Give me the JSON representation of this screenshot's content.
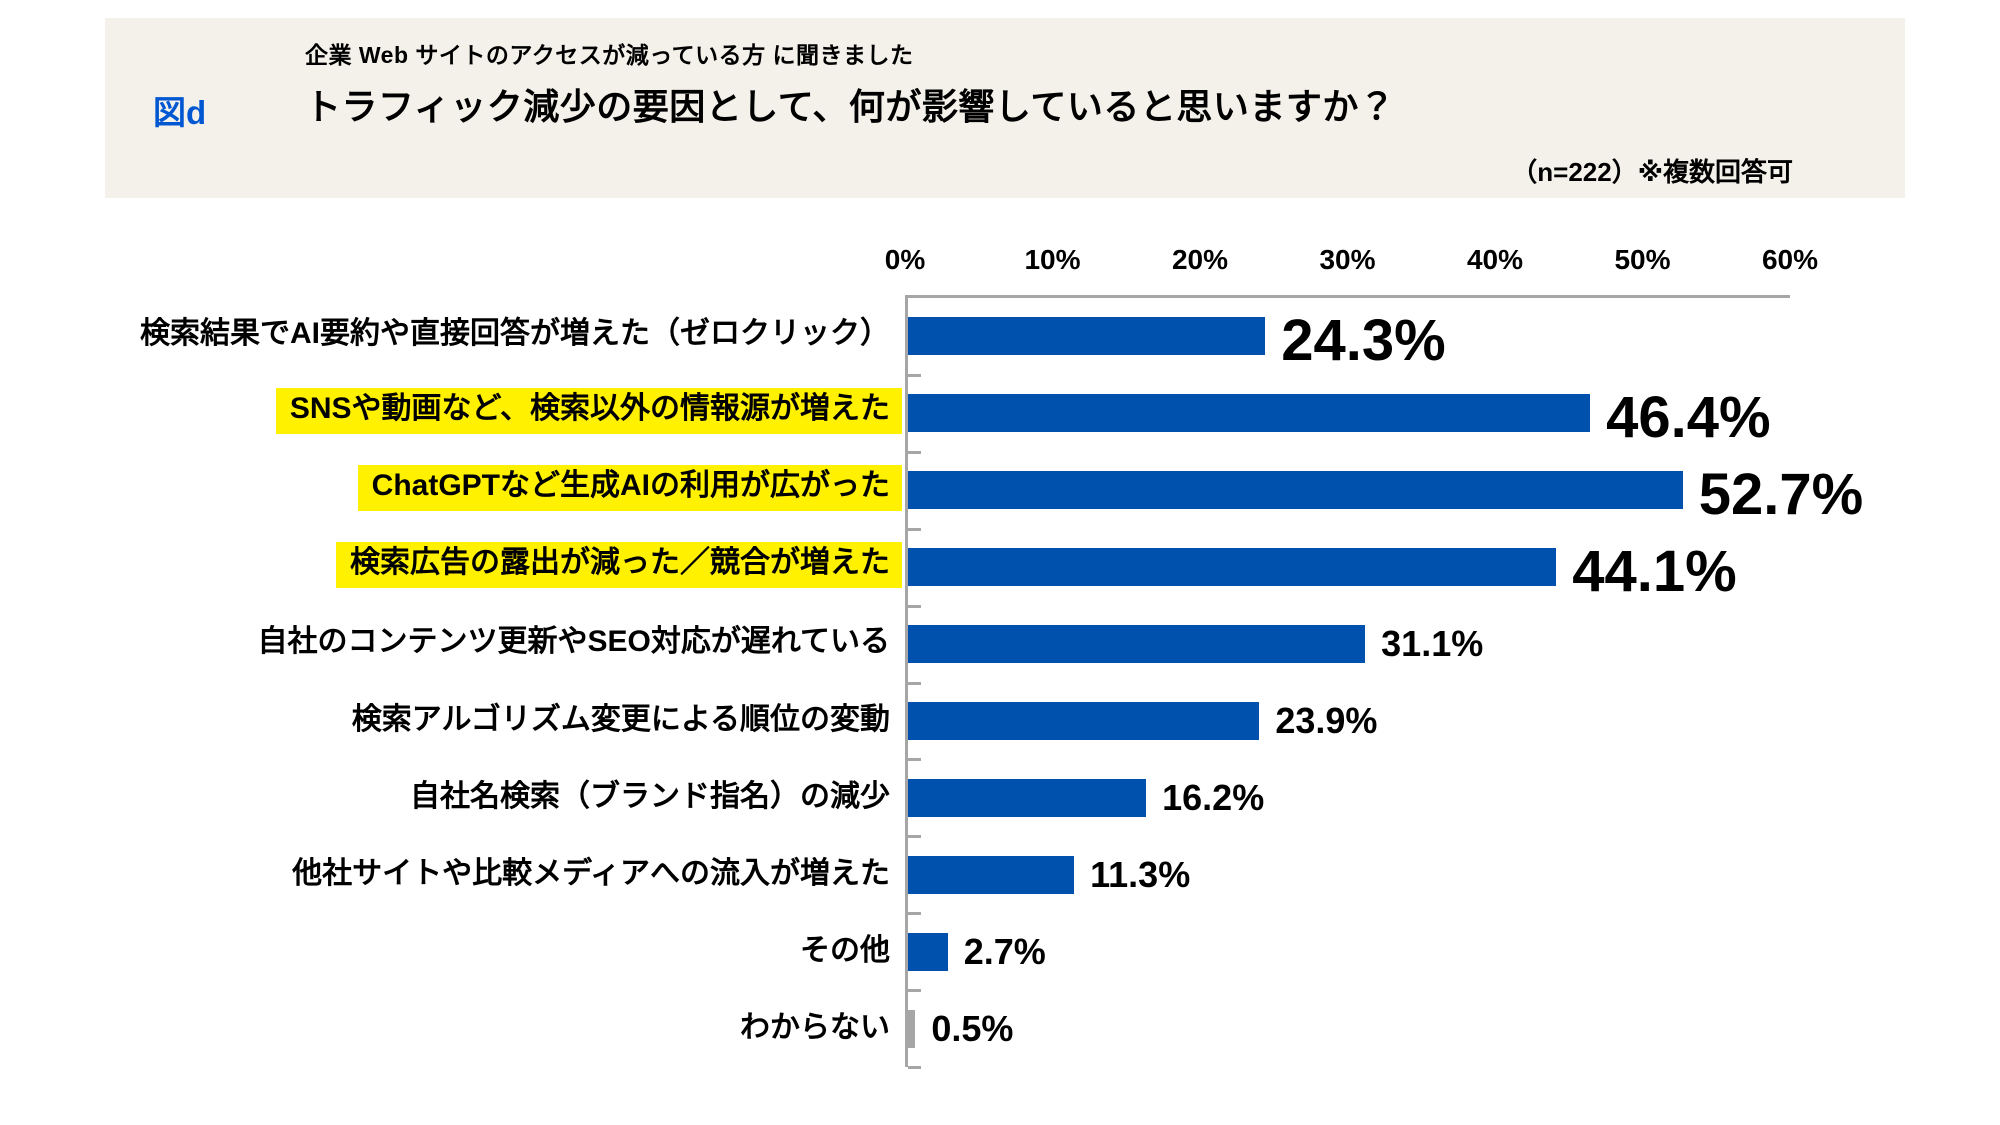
{
  "header": {
    "figure_label": "図d",
    "subtitle": "企業 Web サイトのアクセスが減っている方 に聞きました",
    "title": "トラフィック減少の要因として、何が影響していると思いますか？",
    "note": "（n=222）※複数回答可"
  },
  "colors": {
    "band_background": "#F4F1EA",
    "bar_blue": "#0050AE",
    "bar_gray": "#A6A6A6",
    "axis_gray": "#A6A6A6",
    "highlight_yellow": "#FFF100",
    "figure_label_blue": "#0057D2"
  },
  "chart_data": {
    "type": "bar",
    "orientation": "horizontal",
    "title": "トラフィック減少の要因として、何が影響していると思いますか？",
    "xlim": [
      0,
      60
    ],
    "x_tick_labels": [
      "0%",
      "10%",
      "20%",
      "30%",
      "40%",
      "50%",
      "60%"
    ],
    "grid": false,
    "legend": "none",
    "categories": [
      "検索結果でAI要約や直接回答が増えた（ゼロクリック）",
      "SNSや動画など、検索以外の情報源が増えた",
      "ChatGPTなど生成AIの利用が広がった",
      "検索広告の露出が減った／競合が増えた",
      "自社のコンテンツ更新やSEO対応が遅れている",
      "検索アルゴリズム変更による順位の変動",
      "自社名検索（ブランド指名）の減少",
      "他社サイトや比較メディアへの流入が増えた",
      "その他",
      "わからない"
    ],
    "values": [
      24.3,
      46.4,
      52.7,
      44.1,
      31.1,
      23.9,
      16.2,
      11.3,
      2.7,
      0.5
    ],
    "data_labels": [
      "24.3%",
      "46.4%",
      "52.7%",
      "44.1%",
      "31.1%",
      "23.9%",
      "16.2%",
      "11.3%",
      "2.7%",
      "0.5%"
    ],
    "label_highlighted": [
      false,
      true,
      true,
      true,
      false,
      false,
      false,
      false,
      false,
      false
    ],
    "value_emphasized": [
      true,
      true,
      true,
      true,
      false,
      false,
      false,
      false,
      false,
      false
    ],
    "bar_gray": [
      false,
      false,
      false,
      false,
      false,
      false,
      false,
      false,
      false,
      true
    ]
  }
}
